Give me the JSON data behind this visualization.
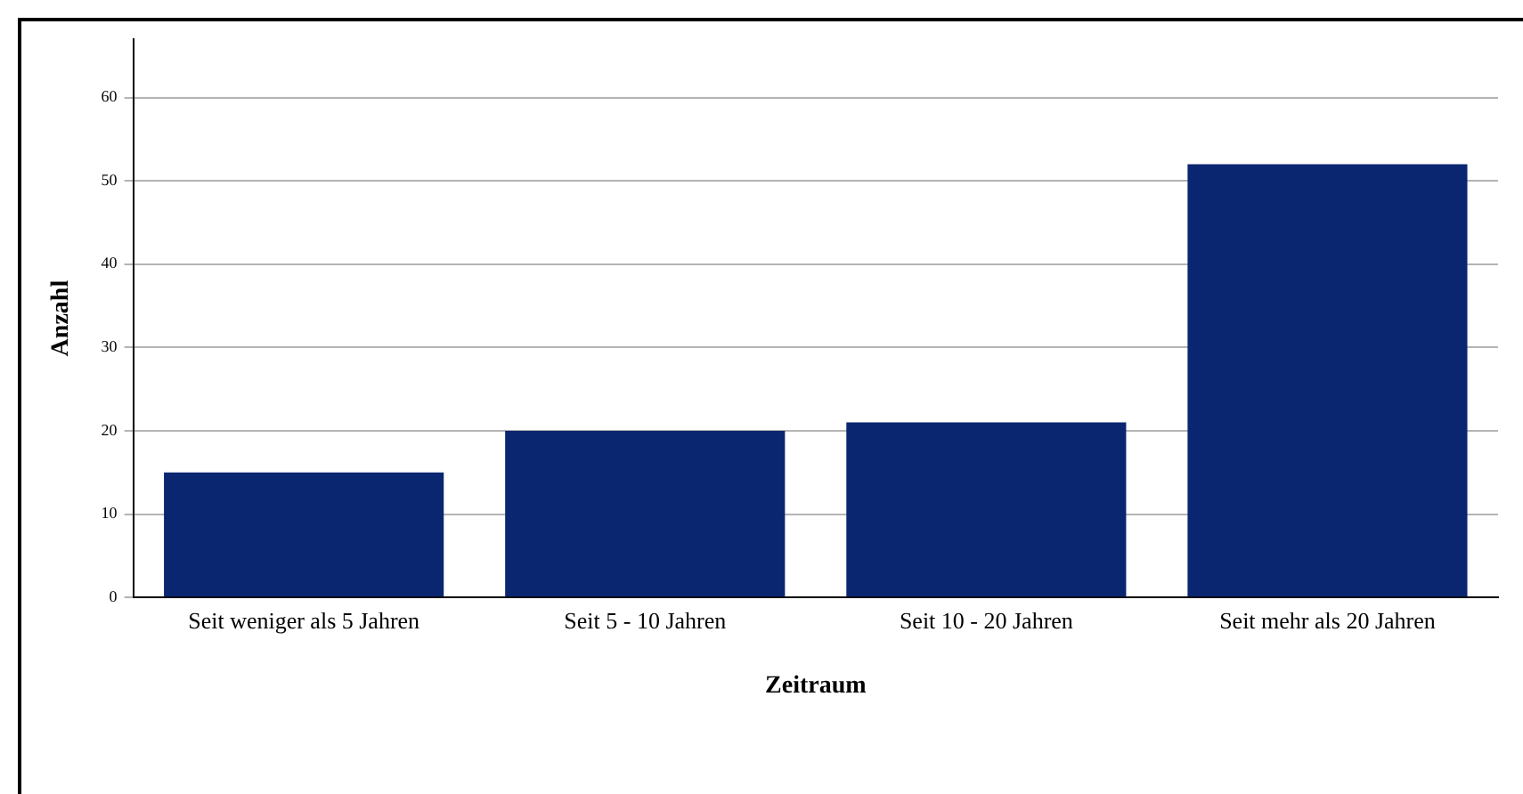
{
  "chart_data": {
    "type": "bar",
    "xlabel": "Zeitraum",
    "ylabel": "Anzahl",
    "categories": [
      "Seit weniger als 5 Jahren",
      "Seit 5 - 10 Jahren",
      "Seit 10 - 20 Jahren",
      "Seit mehr als 20 Jahren"
    ],
    "values": [
      15,
      20,
      21,
      52
    ],
    "color": "#0b2670",
    "ylim": [
      0,
      67
    ],
    "yticks": [
      0,
      10,
      20,
      30,
      40,
      50,
      60
    ],
    "grid": "y",
    "legend": false
  }
}
